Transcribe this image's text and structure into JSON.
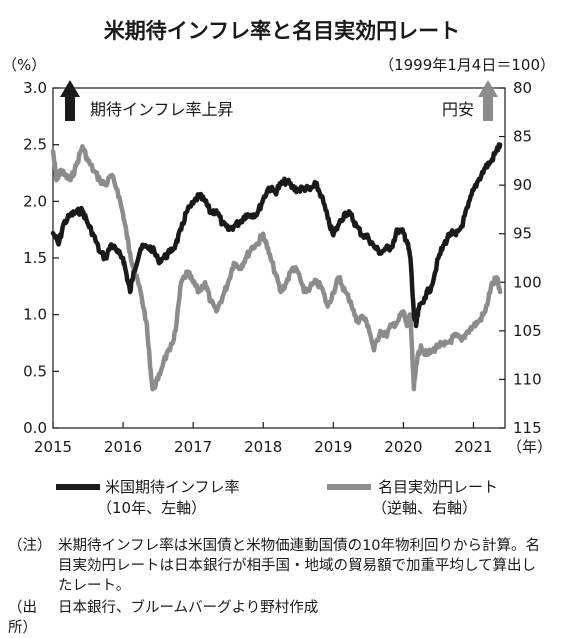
{
  "chart_data": {
    "type": "line",
    "title": "米期待インフレ率と名目実効円レート",
    "left_axis_unit": "（%）",
    "right_axis_unit": "（1999年1月4日＝100）",
    "x_axis_unit": "（年）",
    "x_ticks": [
      "2015",
      "2016",
      "2017",
      "2018",
      "2019",
      "2020",
      "2021"
    ],
    "left_axis": {
      "range": [
        0.0,
        3.0
      ],
      "ticks": [
        "3.0",
        "2.5",
        "2.0",
        "1.5",
        "1.0",
        "0.5",
        "0.0"
      ]
    },
    "right_axis": {
      "range": [
        80,
        115
      ],
      "inverted": true,
      "ticks": [
        "80",
        "85",
        "90",
        "95",
        "100",
        "105",
        "110",
        "115"
      ]
    },
    "annotations": {
      "left_arrow_label": "期待インフレ率上昇",
      "right_arrow_label": "円安"
    },
    "grid": false,
    "series": [
      {
        "name": "米国期待インフレ率",
        "sub": "（10年、左軸）",
        "axis": "left",
        "color": "#1a1a1a",
        "points": [
          [
            2015.0,
            1.72
          ],
          [
            2015.08,
            1.62
          ],
          [
            2015.15,
            1.8
          ],
          [
            2015.25,
            1.88
          ],
          [
            2015.33,
            1.9
          ],
          [
            2015.42,
            1.92
          ],
          [
            2015.5,
            1.8
          ],
          [
            2015.58,
            1.7
          ],
          [
            2015.67,
            1.55
          ],
          [
            2015.75,
            1.5
          ],
          [
            2015.83,
            1.62
          ],
          [
            2015.92,
            1.55
          ],
          [
            2016.0,
            1.5
          ],
          [
            2016.05,
            1.35
          ],
          [
            2016.1,
            1.2
          ],
          [
            2016.15,
            1.38
          ],
          [
            2016.25,
            1.58
          ],
          [
            2016.33,
            1.6
          ],
          [
            2016.42,
            1.58
          ],
          [
            2016.5,
            1.48
          ],
          [
            2016.58,
            1.5
          ],
          [
            2016.67,
            1.55
          ],
          [
            2016.75,
            1.62
          ],
          [
            2016.83,
            1.75
          ],
          [
            2016.9,
            1.9
          ],
          [
            2017.0,
            1.98
          ],
          [
            2017.08,
            2.05
          ],
          [
            2017.17,
            2.0
          ],
          [
            2017.25,
            1.9
          ],
          [
            2017.33,
            1.92
          ],
          [
            2017.42,
            1.8
          ],
          [
            2017.5,
            1.75
          ],
          [
            2017.58,
            1.78
          ],
          [
            2017.67,
            1.82
          ],
          [
            2017.75,
            1.88
          ],
          [
            2017.83,
            1.88
          ],
          [
            2017.92,
            1.9
          ],
          [
            2018.0,
            2.02
          ],
          [
            2018.08,
            2.12
          ],
          [
            2018.17,
            2.08
          ],
          [
            2018.25,
            2.15
          ],
          [
            2018.33,
            2.18
          ],
          [
            2018.42,
            2.12
          ],
          [
            2018.5,
            2.1
          ],
          [
            2018.58,
            2.12
          ],
          [
            2018.67,
            2.1
          ],
          [
            2018.75,
            2.15
          ],
          [
            2018.83,
            2.05
          ],
          [
            2018.92,
            1.85
          ],
          [
            2019.0,
            1.7
          ],
          [
            2019.08,
            1.8
          ],
          [
            2019.17,
            1.9
          ],
          [
            2019.25,
            1.88
          ],
          [
            2019.33,
            1.78
          ],
          [
            2019.42,
            1.7
          ],
          [
            2019.5,
            1.68
          ],
          [
            2019.58,
            1.6
          ],
          [
            2019.67,
            1.55
          ],
          [
            2019.75,
            1.58
          ],
          [
            2019.83,
            1.6
          ],
          [
            2019.92,
            1.75
          ],
          [
            2020.0,
            1.72
          ],
          [
            2020.05,
            1.65
          ],
          [
            2020.1,
            1.5
          ],
          [
            2020.15,
            1.0
          ],
          [
            2020.18,
            0.9
          ],
          [
            2020.22,
            1.05
          ],
          [
            2020.3,
            1.15
          ],
          [
            2020.4,
            1.25
          ],
          [
            2020.5,
            1.5
          ],
          [
            2020.58,
            1.62
          ],
          [
            2020.67,
            1.72
          ],
          [
            2020.75,
            1.7
          ],
          [
            2020.83,
            1.78
          ],
          [
            2020.92,
            1.95
          ],
          [
            2021.0,
            2.1
          ],
          [
            2021.08,
            2.2
          ],
          [
            2021.17,
            2.3
          ],
          [
            2021.25,
            2.35
          ],
          [
            2021.33,
            2.45
          ],
          [
            2021.38,
            2.5
          ]
        ]
      },
      {
        "name": "名目実効円レート",
        "sub": "（逆軸、右軸）",
        "axis": "right",
        "color": "#8c8c8c",
        "points": [
          [
            2015.0,
            86.5
          ],
          [
            2015.05,
            89.5
          ],
          [
            2015.1,
            88.5
          ],
          [
            2015.17,
            89.0
          ],
          [
            2015.25,
            89.5
          ],
          [
            2015.33,
            88.0
          ],
          [
            2015.42,
            86.0
          ],
          [
            2015.5,
            87.5
          ],
          [
            2015.58,
            88.5
          ],
          [
            2015.67,
            89.5
          ],
          [
            2015.75,
            90.0
          ],
          [
            2015.83,
            89.0
          ],
          [
            2015.92,
            90.5
          ],
          [
            2016.0,
            93.0
          ],
          [
            2016.05,
            95.0
          ],
          [
            2016.1,
            97.0
          ],
          [
            2016.17,
            99.0
          ],
          [
            2016.25,
            101.0
          ],
          [
            2016.33,
            104.0
          ],
          [
            2016.38,
            108.0
          ],
          [
            2016.42,
            111.0
          ],
          [
            2016.5,
            110.0
          ],
          [
            2016.58,
            108.0
          ],
          [
            2016.67,
            107.0
          ],
          [
            2016.75,
            105.0
          ],
          [
            2016.83,
            100.0
          ],
          [
            2016.92,
            99.0
          ],
          [
            2017.0,
            100.0
          ],
          [
            2017.08,
            101.0
          ],
          [
            2017.17,
            100.0
          ],
          [
            2017.25,
            102.0
          ],
          [
            2017.33,
            103.0
          ],
          [
            2017.42,
            101.5
          ],
          [
            2017.5,
            100.0
          ],
          [
            2017.58,
            98.0
          ],
          [
            2017.67,
            98.5
          ],
          [
            2017.75,
            97.5
          ],
          [
            2017.83,
            96.5
          ],
          [
            2017.92,
            96.0
          ],
          [
            2018.0,
            95.0
          ],
          [
            2018.08,
            97.0
          ],
          [
            2018.17,
            99.0
          ],
          [
            2018.25,
            101.0
          ],
          [
            2018.33,
            100.0
          ],
          [
            2018.42,
            98.5
          ],
          [
            2018.5,
            99.0
          ],
          [
            2018.58,
            101.0
          ],
          [
            2018.67,
            100.5
          ],
          [
            2018.75,
            100.0
          ],
          [
            2018.83,
            100.5
          ],
          [
            2018.92,
            102.5
          ],
          [
            2019.0,
            101.0
          ],
          [
            2019.08,
            99.5
          ],
          [
            2019.17,
            101.0
          ],
          [
            2019.25,
            102.0
          ],
          [
            2019.33,
            104.0
          ],
          [
            2019.42,
            103.5
          ],
          [
            2019.5,
            104.5
          ],
          [
            2019.58,
            107.0
          ],
          [
            2019.67,
            105.0
          ],
          [
            2019.75,
            105.5
          ],
          [
            2019.83,
            104.5
          ],
          [
            2019.92,
            104.0
          ],
          [
            2020.0,
            103.0
          ],
          [
            2020.05,
            104.5
          ],
          [
            2020.1,
            103.5
          ],
          [
            2020.15,
            111.0
          ],
          [
            2020.18,
            108.5
          ],
          [
            2020.25,
            106.5
          ],
          [
            2020.33,
            107.5
          ],
          [
            2020.42,
            107.0
          ],
          [
            2020.5,
            106.5
          ],
          [
            2020.58,
            106.5
          ],
          [
            2020.67,
            106.0
          ],
          [
            2020.75,
            105.5
          ],
          [
            2020.83,
            106.0
          ],
          [
            2020.92,
            105.0
          ],
          [
            2021.0,
            104.5
          ],
          [
            2021.08,
            104.0
          ],
          [
            2021.17,
            103.0
          ],
          [
            2021.25,
            100.5
          ],
          [
            2021.33,
            99.5
          ],
          [
            2021.38,
            101.0
          ]
        ]
      }
    ]
  },
  "notes": {
    "note_label": "（注）",
    "note_text": "米期待インフレ率は米国債と米物価連動国債の10年物利回りから計算。名目実効円レートは日本銀行が相手国・地域の貿易額で加重平均して算出したレート。",
    "source_label": "（出所）",
    "source_text": "日本銀行、ブルームバーグより野村作成"
  }
}
